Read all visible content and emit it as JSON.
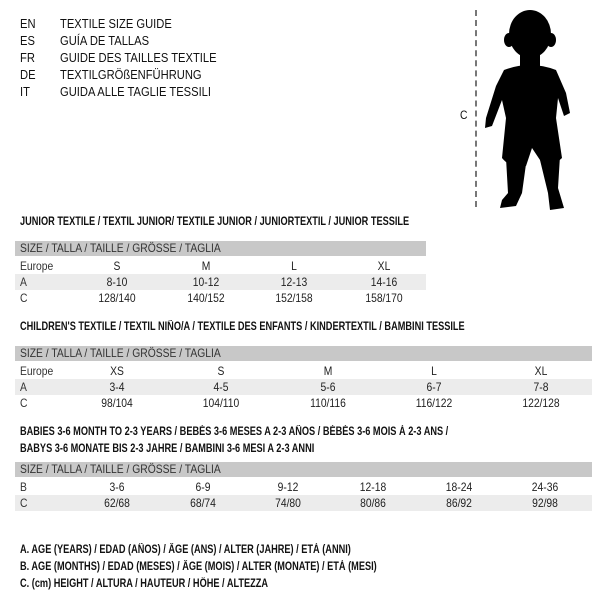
{
  "header": {
    "languages": [
      {
        "code": "EN",
        "title": "TEXTILE SIZE GUIDE"
      },
      {
        "code": "ES",
        "title": "GUÍA DE TALLAS"
      },
      {
        "code": "FR",
        "title": "GUIDE DES TAILLES TEXTILE"
      },
      {
        "code": "DE",
        "title": "TEXTILGRÖßENFÜHRUNG"
      },
      {
        "code": "IT",
        "title": "GUIDA ALLE TAGLIE TESSILI"
      }
    ]
  },
  "figure": {
    "measure_label": "C",
    "icon": "child-silhouette"
  },
  "size_header": "SIZE / TALLA / TAILLE / GRÖSSE / TAGLIA",
  "tables": [
    {
      "title": "JUNIOR TEXTILE / TEXTIL JUNIOR/ TEXTILE JUNIOR / JUNIORTEXTIL / JUNIOR TESSILE",
      "rows": [
        {
          "label": "Europe",
          "values": [
            "S",
            "M",
            "L",
            "XL"
          ]
        },
        {
          "label": "A",
          "values": [
            "8-10",
            "10-12",
            "12-13",
            "14-16"
          ]
        },
        {
          "label": "C",
          "values": [
            "128/140",
            "140/152",
            "152/158",
            "158/170"
          ]
        }
      ]
    },
    {
      "title": "CHILDREN'S TEXTILE / TEXTIL NIÑO/A / TEXTILE DES ENFANTS / KINDERTEXTIL / BAMBINI TESSILE",
      "rows": [
        {
          "label": "Europe",
          "values": [
            "XS",
            "S",
            "M",
            "L",
            "XL"
          ]
        },
        {
          "label": "A",
          "values": [
            "3-4",
            "4-5",
            "5-6",
            "6-7",
            "7-8"
          ]
        },
        {
          "label": "C",
          "values": [
            "98/104",
            "104/110",
            "110/116",
            "116/122",
            "122/128"
          ]
        }
      ]
    },
    {
      "title": "BABIES 3-6 MONTH TO 2-3 YEARS / BEBÉS 3-6 MESES A 2-3 AÑOS / BÉBÉS 3-6 MOIS À 2-3 ANS /",
      "title_line2": "BABYS 3-6 MONATE BIS 2-3 JAHRE / BAMBINI 3-6 MESI A 2-3 ANNI",
      "rows": [
        {
          "label": "B",
          "values": [
            "3-6",
            "6-9",
            "9-12",
            "12-18",
            "18-24",
            "24-36"
          ]
        },
        {
          "label": "C",
          "values": [
            "62/68",
            "68/74",
            "74/80",
            "80/86",
            "86/92",
            "92/98"
          ]
        }
      ]
    }
  ],
  "legend": [
    "A. AGE (YEARS) / EDAD (AÑOS) / ÂGE (ANS) / ALTER (JAHRE) / ETÀ (ANNI)",
    "B. AGE (MONTHS) / EDAD (MESES) / ÂGE (MOIS) / ALTER (MONATE) / ETÀ (MESI)",
    "C. (cm) HEIGHT / ALTURA / HAUTEUR / HÖHE / ALTEZZA"
  ]
}
